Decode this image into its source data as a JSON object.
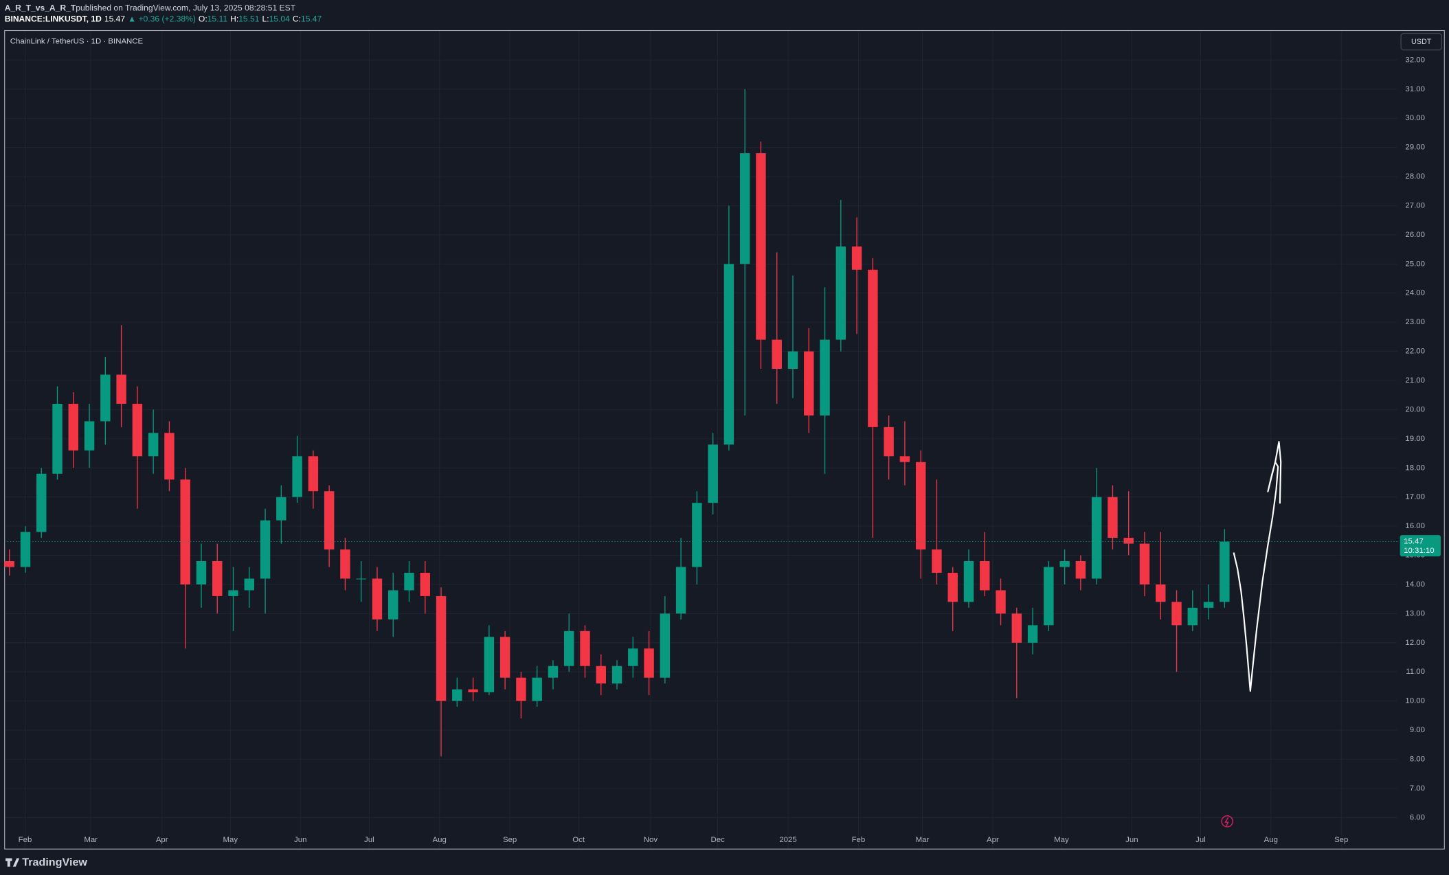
{
  "header": {
    "publisher": "A_R_T_vs_A_R_T",
    "published_text": "published on TradingView.com, July 13, 2025 08:28:51 EST",
    "symbol": "BINANCE:LINKUSDT, 1D",
    "last": "15.47",
    "change": "▲ +0.36 (+2.38%)",
    "ohlc": [
      {
        "label": "O:",
        "value": "15.11"
      },
      {
        "label": "H:",
        "value": "15.51"
      },
      {
        "label": "L:",
        "value": "15.04"
      },
      {
        "label": "C:",
        "value": "15.47"
      }
    ]
  },
  "chart_data": {
    "type": "candlestick",
    "title": "ChainLink / TetherUS · 1D · BINANCE",
    "currency_button": "USDT",
    "up_color": "#089981",
    "down_color": "#f23645",
    "open": [
      14.8,
      14.6,
      15.8,
      17.8,
      20.2,
      18.6,
      19.6,
      21.2,
      20.2,
      18.4,
      19.2,
      17.6,
      14.0,
      14.8,
      13.6,
      13.8,
      14.2,
      16.2,
      17.0,
      18.4,
      17.2,
      15.2,
      14.2,
      14.2,
      12.8,
      13.8,
      14.4,
      13.6,
      10.0,
      10.4,
      10.3,
      12.2,
      10.8,
      10.0,
      10.8,
      11.2,
      12.4,
      11.2,
      10.6,
      11.2,
      11.8,
      10.8,
      13.0,
      14.6,
      16.8,
      18.8,
      25.0,
      28.8,
      22.4,
      21.4,
      22.0,
      19.8,
      22.4,
      25.6,
      24.8,
      19.4,
      18.4,
      18.2,
      15.2,
      14.4,
      13.4,
      14.8,
      13.8,
      13.0,
      12.0,
      12.6,
      14.6,
      14.8,
      14.2,
      17.0,
      15.6,
      15.4,
      14.0,
      13.4,
      12.6,
      13.2,
      13.4
    ],
    "high": [
      15.2,
      16.0,
      18.0,
      20.8,
      20.6,
      20.2,
      21.8,
      22.9,
      20.8,
      20.0,
      19.6,
      18.0,
      15.4,
      15.4,
      14.6,
      14.6,
      16.6,
      17.4,
      19.1,
      18.6,
      17.4,
      15.6,
      14.8,
      14.6,
      14.4,
      14.8,
      14.8,
      13.9,
      10.8,
      10.8,
      12.6,
      12.4,
      11.0,
      11.2,
      11.4,
      13.0,
      12.6,
      11.6,
      11.4,
      12.2,
      12.4,
      13.6,
      15.6,
      17.2,
      19.2,
      27.0,
      31.0,
      29.2,
      25.4,
      24.6,
      22.8,
      24.2,
      27.2,
      26.6,
      25.2,
      19.8,
      19.6,
      18.6,
      17.6,
      14.6,
      15.2,
      15.8,
      14.2,
      13.2,
      13.2,
      14.8,
      15.2,
      15.0,
      18.0,
      17.4,
      17.2,
      15.8,
      15.8,
      13.8,
      13.8,
      14.0,
      15.9
    ],
    "low": [
      14.3,
      14.4,
      15.6,
      17.6,
      18.0,
      18.0,
      18.8,
      19.4,
      16.6,
      17.8,
      17.2,
      11.8,
      13.2,
      13.0,
      12.4,
      13.2,
      13.0,
      15.4,
      16.8,
      16.6,
      14.6,
      13.8,
      13.4,
      12.4,
      12.2,
      13.4,
      13.0,
      8.1,
      9.8,
      10.0,
      10.2,
      10.4,
      9.4,
      9.8,
      10.4,
      11.0,
      10.8,
      10.2,
      10.4,
      10.8,
      10.2,
      10.6,
      12.8,
      14.0,
      16.4,
      18.6,
      19.8,
      21.4,
      20.2,
      20.4,
      19.2,
      17.8,
      22.0,
      22.6,
      15.6,
      17.6,
      17.4,
      14.2,
      14.0,
      12.4,
      13.2,
      13.6,
      12.6,
      10.1,
      11.6,
      12.4,
      14.0,
      13.8,
      14.0,
      15.2,
      15.0,
      13.6,
      12.8,
      11.0,
      12.4,
      12.8,
      13.2
    ],
    "close": [
      14.6,
      15.8,
      17.8,
      20.2,
      18.6,
      19.6,
      21.2,
      20.2,
      18.4,
      19.2,
      17.6,
      14.0,
      14.8,
      13.6,
      13.8,
      14.2,
      16.2,
      17.0,
      18.4,
      17.2,
      15.2,
      14.2,
      14.2,
      12.8,
      13.8,
      14.4,
      13.6,
      10.0,
      10.4,
      10.3,
      12.2,
      10.8,
      10.0,
      10.8,
      11.2,
      12.4,
      11.2,
      10.6,
      11.2,
      11.8,
      10.8,
      13.0,
      14.6,
      16.8,
      18.8,
      25.0,
      28.8,
      22.4,
      21.4,
      22.0,
      19.8,
      22.4,
      25.6,
      24.8,
      19.4,
      18.4,
      18.2,
      15.2,
      14.4,
      13.4,
      14.8,
      13.8,
      13.0,
      12.0,
      12.6,
      14.6,
      14.8,
      14.2,
      17.0,
      15.6,
      15.4,
      14.0,
      13.4,
      12.6,
      13.2,
      13.4,
      15.47
    ],
    "last_price": {
      "value": 15.47,
      "countdown": "10:31:10"
    },
    "xlim": [
      -0.3,
      86.8
    ],
    "xticks": [
      {
        "value": 0.98,
        "label": "Feb"
      },
      {
        "value": 5.09,
        "label": "Mar"
      },
      {
        "value": 9.54,
        "label": "Apr"
      },
      {
        "value": 13.82,
        "label": "May"
      },
      {
        "value": 18.2,
        "label": "Jun"
      },
      {
        "value": 22.5,
        "label": "Jul"
      },
      {
        "value": 26.9,
        "label": "Aug"
      },
      {
        "value": 31.3,
        "label": "Sep"
      },
      {
        "value": 35.6,
        "label": "Oct"
      },
      {
        "value": 40.1,
        "label": "Nov"
      },
      {
        "value": 44.3,
        "label": "Dec"
      },
      {
        "value": 48.7,
        "label": "2025"
      },
      {
        "value": 53.1,
        "label": "Feb"
      },
      {
        "value": 57.1,
        "label": "Mar"
      },
      {
        "value": 61.5,
        "label": "Apr"
      },
      {
        "value": 65.8,
        "label": "May"
      },
      {
        "value": 70.2,
        "label": "Jun"
      },
      {
        "value": 74.5,
        "label": "Jul"
      },
      {
        "value": 78.9,
        "label": "Aug"
      },
      {
        "value": 83.3,
        "label": "Sep"
      }
    ],
    "ylim": [
      4.95,
      33.01
    ],
    "yticks": [
      {
        "value": 6,
        "label": "6.00"
      },
      {
        "value": 7,
        "label": "7.00"
      },
      {
        "value": 8,
        "label": "8.00"
      },
      {
        "value": 9,
        "label": "9.00"
      },
      {
        "value": 10,
        "label": "10.00"
      },
      {
        "value": 11,
        "label": "11.00"
      },
      {
        "value": 12,
        "label": "12.00"
      },
      {
        "value": 13,
        "label": "13.00"
      },
      {
        "value": 14,
        "label": "14.00"
      },
      {
        "value": 15,
        "label": "15.00"
      },
      {
        "value": 16,
        "label": "16.00"
      },
      {
        "value": 17,
        "label": "17.00"
      },
      {
        "value": 18,
        "label": "18.00"
      },
      {
        "value": 19,
        "label": "19.00"
      },
      {
        "value": 20,
        "label": "20.00"
      },
      {
        "value": 21,
        "label": "21.00"
      },
      {
        "value": 22,
        "label": "22.00"
      },
      {
        "value": 23,
        "label": "23.00"
      },
      {
        "value": 24,
        "label": "24.00"
      },
      {
        "value": 25,
        "label": "25.00"
      },
      {
        "value": 26,
        "label": "26.00"
      },
      {
        "value": 27,
        "label": "27.00"
      },
      {
        "value": 28,
        "label": "28.00"
      },
      {
        "value": 29,
        "label": "29.00"
      },
      {
        "value": 30,
        "label": "30.00"
      },
      {
        "value": 31,
        "label": "31.00"
      },
      {
        "value": 32,
        "label": "32.00"
      }
    ],
    "grid": true
  },
  "footer": {
    "brand": "TradingView"
  }
}
